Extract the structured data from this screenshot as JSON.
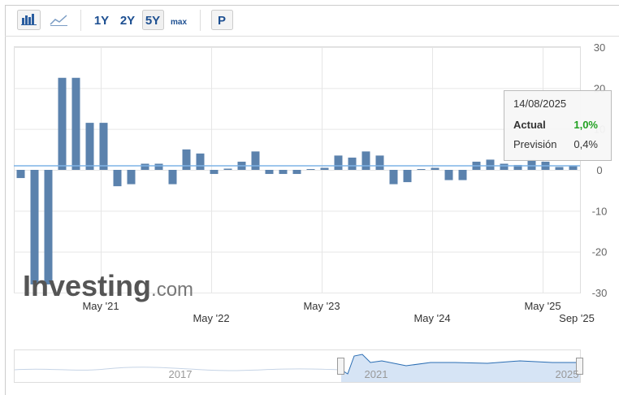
{
  "toolbar": {
    "buttons": [
      "1Y",
      "2Y",
      "5Y",
      "max",
      "P"
    ]
  },
  "chart_data": {
    "type": "bar",
    "color": "#5b82ad",
    "categories": [
      null,
      null,
      null,
      null,
      null,
      null,
      null,
      null,
      null,
      null,
      null,
      null,
      null,
      null,
      null,
      null,
      null,
      null,
      null,
      null,
      null,
      null,
      null,
      null,
      null,
      null,
      null,
      null,
      null,
      null,
      null,
      null,
      null,
      null,
      null,
      null,
      null,
      null,
      null,
      null,
      null
    ],
    "values": [
      -2,
      -28,
      -28,
      22.5,
      22.5,
      11.5,
      11.5,
      -4,
      -3.5,
      1.5,
      1.5,
      -3.5,
      5,
      4,
      -1,
      0.3,
      2,
      4.5,
      -1,
      -1,
      -1,
      0.2,
      0.5,
      3.5,
      3,
      4.5,
      3.5,
      -3.5,
      -3,
      0.2,
      0.5,
      -2.5,
      -2.5,
      2,
      2.5,
      1.5,
      1.2,
      2.5,
      2,
      0.7,
      1.0
    ],
    "ylim": [
      -30,
      30
    ],
    "yticks": [
      -30,
      -20,
      -10,
      0,
      10,
      20,
      30
    ],
    "grid": true,
    "xtick_labels": [
      "May '21",
      "May '22",
      "May '23",
      "May '24",
      "May '25",
      "Sep '25"
    ],
    "tooltip": {
      "date": "14/08/2025",
      "rows": [
        {
          "label": "Actual",
          "value": 1.0,
          "value_label": "1,0%"
        },
        {
          "label": "Previsión",
          "value": 0.4,
          "value_label": "0,4%"
        }
      ]
    },
    "logo": "Investing",
    "logo_suffix": ".com"
  },
  "navigator": {
    "labels": [
      "2017",
      "2021",
      "2025"
    ]
  }
}
